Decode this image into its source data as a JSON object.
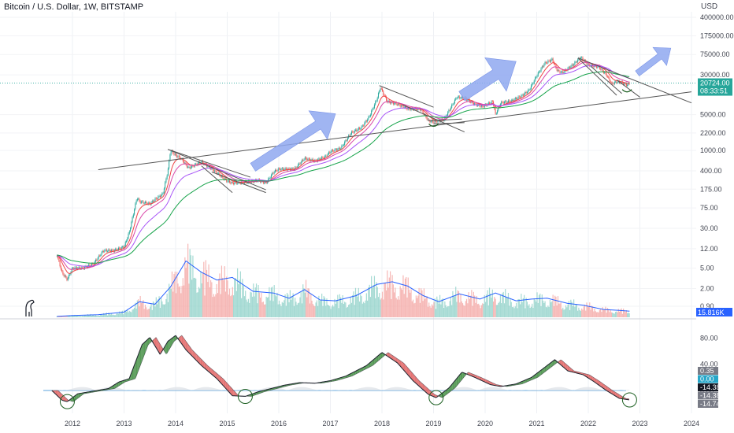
{
  "title": "Bitcoin / U.S. Dollar, 1W, BITSTAMP",
  "currency": "USD",
  "colors": {
    "up": "#26a69a",
    "down": "#ef5350",
    "ema": [
      "#ef4444",
      "#d946a8",
      "#a855f7",
      "#16a34a"
    ],
    "volume_ma": "#2962ff",
    "trend": "#555555",
    "arrow": "#8fa8f0",
    "osc_bull": "#3a8a3a",
    "osc_bear": "#e05a5a",
    "circle": "#1b5e20",
    "price_line": "#26a69a",
    "volume_label": "#2962ff"
  },
  "price_tag": {
    "price": "20724.00",
    "countdown": "08:33:51"
  },
  "volume_tag": "15.816K",
  "osc_tags": [
    {
      "text": "0.35",
      "bg": "#787b86",
      "fg": "#ffffff"
    },
    {
      "text": "0.00",
      "bg": "#26a6c8",
      "fg": "#ffffff"
    },
    {
      "text": "-14.38",
      "bg": "#131722",
      "fg": "#ffffff"
    },
    {
      "text": "-14.38",
      "bg": "#787b86",
      "fg": "#ffffff"
    },
    {
      "text": "-14.74",
      "bg": "#787b86",
      "fg": "#ffffff"
    }
  ],
  "chart_data": [
    {
      "type": "line",
      "pane": "price",
      "y_scale": "log",
      "title": "Bitcoin / U.S. Dollar, 1W, BITSTAMP",
      "y_tick_labels": [
        "400000.00",
        "175000.00",
        "75000.00",
        "30000.00",
        "5000.00",
        "2200.00",
        "1000.00",
        "400.00",
        "175.00",
        "75.00",
        "30.00",
        "12.00",
        "5.00",
        "2.00",
        "0.90"
      ],
      "y_ticks": [
        400000,
        175000,
        75000,
        30000,
        5000,
        2200,
        1000,
        400,
        175,
        75,
        30,
        12,
        5,
        2,
        0.9
      ],
      "x_tick_labels": [
        "2012",
        "2013",
        "2014",
        "2015",
        "2016",
        "2017",
        "2018",
        "2019",
        "2020",
        "2021",
        "2022",
        "2023",
        "2024"
      ],
      "x_ticks": [
        2012,
        2013,
        2014,
        2015,
        2016,
        2017,
        2018,
        2019,
        2020,
        2021,
        2022,
        2023,
        2024
      ],
      "last_price": 20724,
      "series": [
        {
          "values": [
            [
              2011.7,
              9
            ],
            [
              2011.8,
              4
            ],
            [
              2011.9,
              3
            ],
            [
              2012.0,
              5
            ],
            [
              2012.2,
              5
            ],
            [
              2012.4,
              6
            ],
            [
              2012.6,
              11
            ],
            [
              2012.8,
              11
            ],
            [
              2013.0,
              13
            ],
            [
              2013.1,
              25
            ],
            [
              2013.25,
              120
            ],
            [
              2013.3,
              100
            ],
            [
              2013.5,
              90
            ],
            [
              2013.6,
              110
            ],
            [
              2013.75,
              140
            ],
            [
              2013.85,
              400
            ],
            [
              2013.9,
              1000
            ],
            [
              2014.0,
              800
            ],
            [
              2014.1,
              700
            ],
            [
              2014.25,
              450
            ],
            [
              2014.5,
              600
            ],
            [
              2014.75,
              400
            ],
            [
              2015.0,
              250
            ],
            [
              2015.1,
              230
            ],
            [
              2015.4,
              240
            ],
            [
              2015.6,
              260
            ],
            [
              2015.75,
              230
            ],
            [
              2015.9,
              380
            ],
            [
              2016.0,
              430
            ],
            [
              2016.3,
              430
            ],
            [
              2016.5,
              700
            ],
            [
              2016.7,
              620
            ],
            [
              2016.9,
              750
            ],
            [
              2017.0,
              950
            ],
            [
              2017.2,
              1100
            ],
            [
              2017.4,
              2200
            ],
            [
              2017.6,
              2800
            ],
            [
              2017.75,
              4500
            ],
            [
              2017.9,
              10000
            ],
            [
              2017.97,
              17000
            ],
            [
              2018.1,
              9000
            ],
            [
              2018.3,
              8000
            ],
            [
              2018.5,
              6500
            ],
            [
              2018.75,
              6400
            ],
            [
              2018.9,
              3800
            ],
            [
              2019.0,
              3600
            ],
            [
              2019.2,
              4000
            ],
            [
              2019.45,
              11000
            ],
            [
              2019.6,
              10500
            ],
            [
              2019.8,
              8000
            ],
            [
              2019.95,
              7200
            ],
            [
              2020.15,
              9000
            ],
            [
              2020.2,
              5000
            ],
            [
              2020.3,
              8500
            ],
            [
              2020.5,
              9200
            ],
            [
              2020.7,
              11500
            ],
            [
              2020.85,
              15000
            ],
            [
              2021.0,
              29000
            ],
            [
              2021.15,
              50000
            ],
            [
              2021.3,
              60000
            ],
            [
              2021.4,
              36000
            ],
            [
              2021.5,
              33000
            ],
            [
              2021.7,
              47000
            ],
            [
              2021.85,
              66000
            ],
            [
              2022.0,
              47000
            ],
            [
              2022.2,
              43000
            ],
            [
              2022.35,
              30000
            ],
            [
              2022.45,
              20000
            ],
            [
              2022.55,
              22000
            ],
            [
              2022.65,
              21000
            ],
            [
              2022.75,
              19000
            ],
            [
              2022.8,
              20724
            ]
          ]
        }
      ]
    },
    {
      "type": "bar",
      "pane": "volume",
      "last_volume": "15.816K",
      "series": [
        {
          "values": [
            [
              2011.7,
              0.1
            ],
            [
              2012.0,
              0.2
            ],
            [
              2012.5,
              0.3
            ],
            [
              2013.0,
              0.6
            ],
            [
              2013.3,
              1.8
            ],
            [
              2013.6,
              1.5
            ],
            [
              2013.9,
              3.5
            ],
            [
              2014.2,
              6.5
            ],
            [
              2014.5,
              5.2
            ],
            [
              2014.8,
              4.3
            ],
            [
              2015.1,
              4.6
            ],
            [
              2015.5,
              3.0
            ],
            [
              2015.9,
              2.8
            ],
            [
              2016.2,
              2.2
            ],
            [
              2016.5,
              3.2
            ],
            [
              2016.8,
              2.0
            ],
            [
              2017.1,
              1.9
            ],
            [
              2017.5,
              2.5
            ],
            [
              2017.9,
              3.8
            ],
            [
              2018.2,
              4.1
            ],
            [
              2018.5,
              3.6
            ],
            [
              2018.8,
              2.5
            ],
            [
              2019.1,
              1.8
            ],
            [
              2019.5,
              2.7
            ],
            [
              2019.9,
              2.1
            ],
            [
              2020.2,
              2.8
            ],
            [
              2020.6,
              1.9
            ],
            [
              2020.9,
              2.1
            ],
            [
              2021.2,
              2.2
            ],
            [
              2021.6,
              1.6
            ],
            [
              2021.9,
              1.4
            ],
            [
              2022.3,
              0.9
            ],
            [
              2022.6,
              0.8
            ],
            [
              2022.8,
              0.7
            ]
          ]
        }
      ]
    },
    {
      "type": "line",
      "pane": "oscillator",
      "y_tick_labels": [
        "80.00",
        "40.00",
        "0.00"
      ],
      "y_ticks": [
        80,
        40,
        0
      ],
      "series": [
        {
          "values": [
            [
              2011.6,
              0
            ],
            [
              2011.8,
              -15
            ],
            [
              2011.9,
              -17
            ],
            [
              2012.1,
              -5
            ],
            [
              2012.4,
              -1
            ],
            [
              2012.7,
              3
            ],
            [
              2012.9,
              13
            ],
            [
              2013.1,
              18
            ],
            [
              2013.35,
              70
            ],
            [
              2013.5,
              81
            ],
            [
              2013.7,
              55
            ],
            [
              2013.85,
              75
            ],
            [
              2014.0,
              84
            ],
            [
              2014.2,
              62
            ],
            [
              2014.5,
              38
            ],
            [
              2014.8,
              18
            ],
            [
              2015.1,
              -8
            ],
            [
              2015.35,
              -9
            ],
            [
              2015.6,
              -2
            ],
            [
              2015.9,
              4
            ],
            [
              2016.1,
              8
            ],
            [
              2016.4,
              12
            ],
            [
              2016.7,
              11
            ],
            [
              2017.0,
              15
            ],
            [
              2017.3,
              22
            ],
            [
              2017.7,
              38
            ],
            [
              2018.0,
              58
            ],
            [
              2018.3,
              42
            ],
            [
              2018.6,
              15
            ],
            [
              2018.9,
              -6
            ],
            [
              2019.05,
              -11
            ],
            [
              2019.3,
              4
            ],
            [
              2019.55,
              28
            ],
            [
              2019.8,
              20
            ],
            [
              2020.1,
              9
            ],
            [
              2020.3,
              6
            ],
            [
              2020.6,
              10
            ],
            [
              2020.9,
              20
            ],
            [
              2021.2,
              38
            ],
            [
              2021.35,
              47
            ],
            [
              2021.6,
              30
            ],
            [
              2021.9,
              24
            ],
            [
              2022.1,
              14
            ],
            [
              2022.35,
              0
            ],
            [
              2022.6,
              -12
            ],
            [
              2022.8,
              -14.38
            ]
          ]
        }
      ]
    }
  ]
}
